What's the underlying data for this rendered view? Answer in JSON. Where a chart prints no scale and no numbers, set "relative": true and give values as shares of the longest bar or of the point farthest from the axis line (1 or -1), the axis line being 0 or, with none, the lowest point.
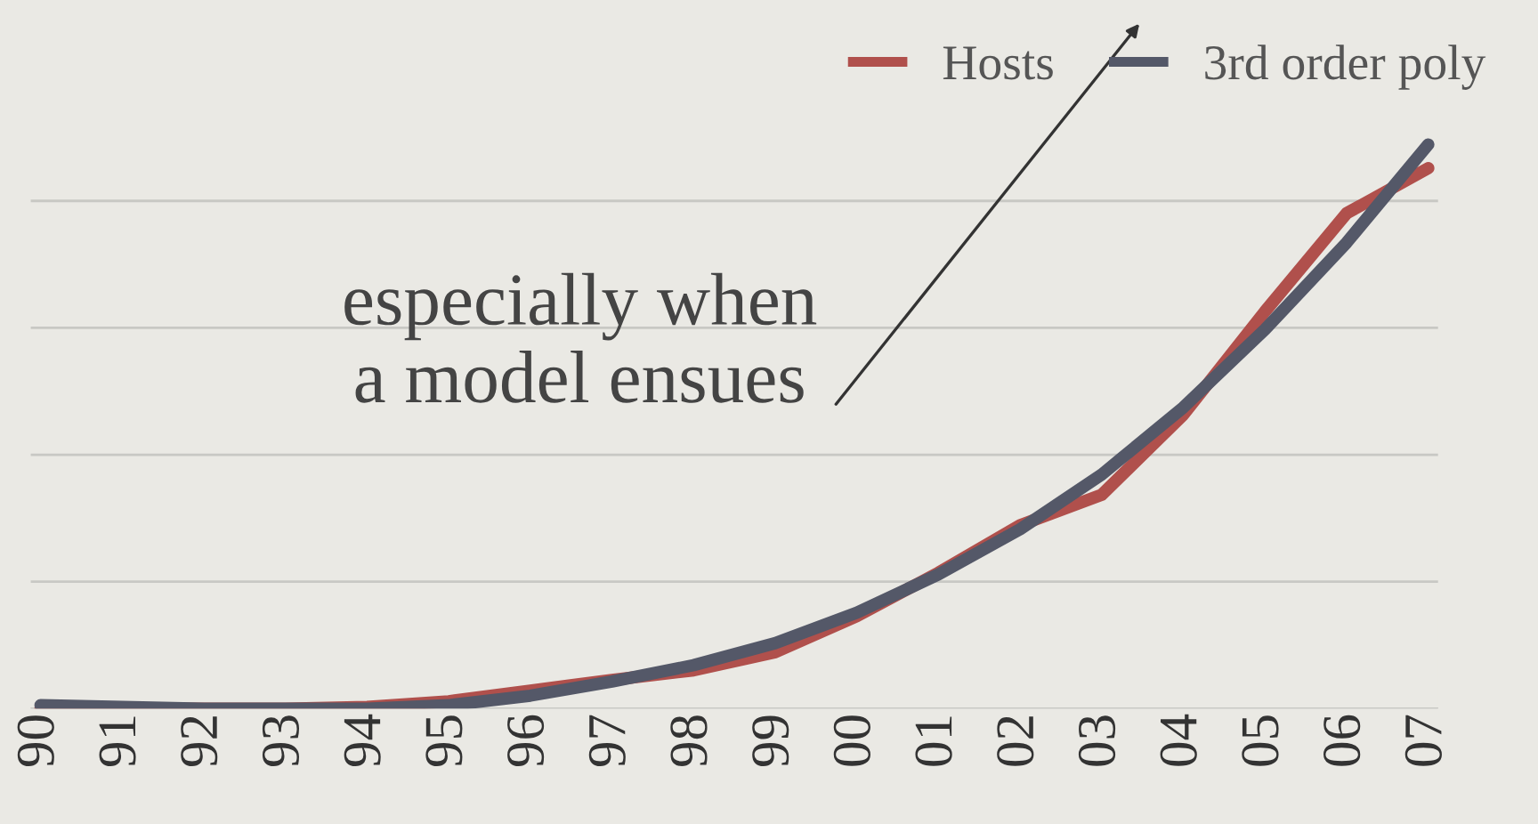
{
  "chart_data": {
    "type": "line",
    "relative": true,
    "categories": [
      "90",
      "91",
      "92",
      "93",
      "94",
      "95",
      "96",
      "97",
      "98",
      "99",
      "00",
      "01",
      "02",
      "03",
      "04",
      "05",
      "06",
      "07"
    ],
    "series": [
      {
        "name": "Hosts",
        "color": "#b0504c",
        "values": [
          0,
          0,
          0,
          0,
          0.003,
          0.013,
          0.032,
          0.051,
          0.068,
          0.1,
          0.164,
          0.241,
          0.325,
          0.379,
          0.521,
          0.704,
          0.878,
          0.958
        ]
      },
      {
        "name": "3rd order poly",
        "color": "#545868",
        "values": [
          0.006,
          0.003,
          0,
          0,
          0,
          0.006,
          0.023,
          0.048,
          0.077,
          0.116,
          0.17,
          0.238,
          0.318,
          0.415,
          0.534,
          0.672,
          0.826,
          1.0
        ]
      }
    ],
    "annotations": [
      "especially when\na model ensues"
    ],
    "legend": "top right",
    "grid": "y",
    "line_style": "solid",
    "marker": "none"
  }
}
